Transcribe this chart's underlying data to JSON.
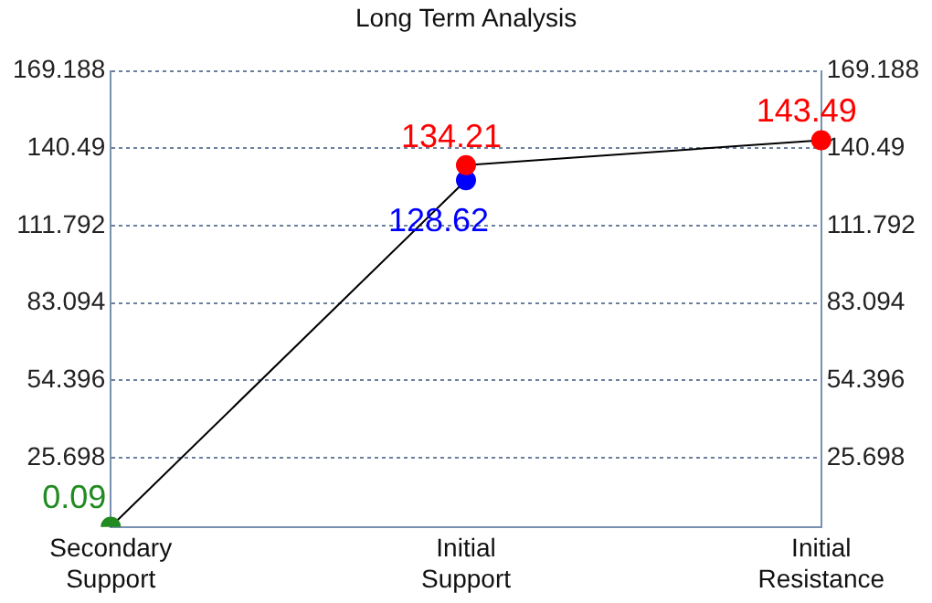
{
  "chart_data": {
    "type": "line",
    "title": "Long Term Analysis",
    "categories": [
      "Secondary Support",
      "Initial Support",
      "Initial Resistance"
    ],
    "series": [
      {
        "color": "#000000",
        "colors": [
          "#228b22",
          "#0000ff",
          "#ff0000",
          "#ff0000"
        ],
        "x": [
          "Secondary Support",
          "Initial Support",
          "Initial Support",
          "Initial Resistance"
        ],
        "values": [
          0.09,
          128.62,
          134.21,
          143.49
        ]
      }
    ],
    "ylim": [
      0,
      169.188
    ],
    "yticks": [
      25.698,
      54.396,
      83.094,
      111.792,
      140.49,
      169.188
    ],
    "y2lim": [
      0,
      169.188
    ],
    "y2ticks": [
      25.698,
      54.396,
      83.094,
      111.792,
      140.49,
      169.188
    ],
    "grid": "y",
    "data_labels": true,
    "marker": "circle"
  }
}
